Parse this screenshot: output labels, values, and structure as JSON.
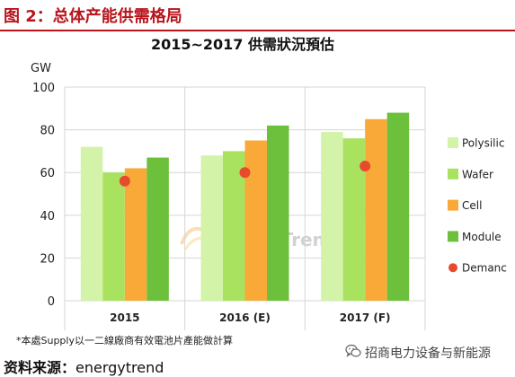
{
  "header": {
    "title": "图 2：总体产能供需格局"
  },
  "chart_data": {
    "type": "bar",
    "title": "2015~2017 供需狀況預估",
    "xlabel": "",
    "ylabel": "GW",
    "categories": [
      "2015",
      "2016 (E)",
      "2017 (F)"
    ],
    "ylim": [
      0,
      100
    ],
    "yticks": [
      0,
      20,
      40,
      60,
      80,
      100
    ],
    "grid": true,
    "legend_position": "right",
    "series": [
      {
        "name": "Polysilic",
        "type": "bar",
        "color": "#d3f3a8",
        "values": [
          72,
          68,
          79
        ]
      },
      {
        "name": "Wafer",
        "type": "bar",
        "color": "#a9e25f",
        "values": [
          60,
          70,
          76
        ]
      },
      {
        "name": "Cell",
        "type": "bar",
        "color": "#f8a938",
        "values": [
          62,
          75,
          85
        ]
      },
      {
        "name": "Module",
        "type": "bar",
        "color": "#6dc03c",
        "values": [
          67,
          82,
          88
        ]
      },
      {
        "name": "Demanc",
        "type": "scatter",
        "marker": "dot",
        "color": "#e84a2e",
        "values": [
          56,
          60,
          63
        ]
      }
    ]
  },
  "watermark": {
    "text": "EnergyTrend",
    "icon": "energytrend-logo-icon"
  },
  "footnote": "*本處Supply以一二線廠商有效電池片產能做計算",
  "source": {
    "label": "资料来源：",
    "value": "energytrend"
  },
  "brand": {
    "icon": "wechat-icon",
    "text": "招商电力设备与新能源"
  }
}
